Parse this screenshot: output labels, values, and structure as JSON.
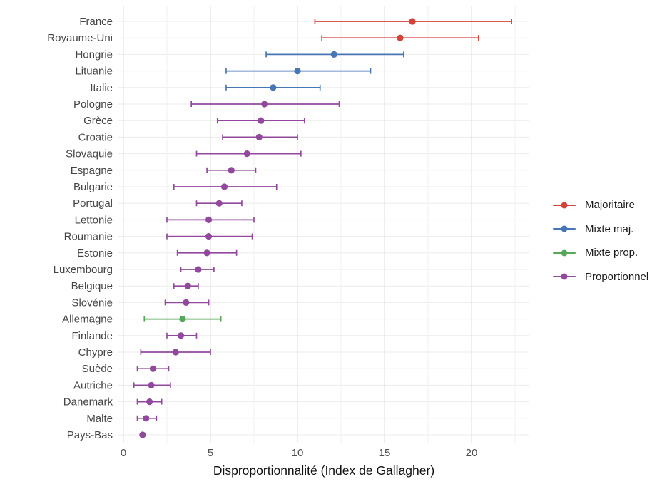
{
  "chart_data": {
    "type": "scatter",
    "subtype": "dot-with-horizontal-error-bars",
    "title": "",
    "xlabel": "Disproportionnalité (Index de Gallagher)",
    "ylabel": "",
    "xlim": [
      -0.3,
      23.3
    ],
    "x_ticks": [
      0,
      5,
      10,
      15,
      20
    ],
    "grid": {
      "vertical_interval": 2.5,
      "major_every": 5,
      "horizontal": "one line per country row"
    },
    "legend_position": "right-center",
    "groups": [
      {
        "name": "Majoritaire",
        "color": "#d6413a"
      },
      {
        "name": "Mixte maj.",
        "color": "#4776b4"
      },
      {
        "name": "Mixte prop.",
        "color": "#55a75a"
      },
      {
        "name": "Proportionnel",
        "color": "#92499d"
      }
    ],
    "points": [
      {
        "country": "France",
        "value": 16.6,
        "lo": 11.0,
        "hi": 22.3,
        "group": "Majoritaire"
      },
      {
        "country": "Royaume-Uni",
        "value": 15.9,
        "lo": 11.4,
        "hi": 20.4,
        "group": "Majoritaire"
      },
      {
        "country": "Hongrie",
        "value": 12.1,
        "lo": 8.2,
        "hi": 16.1,
        "group": "Mixte maj."
      },
      {
        "country": "Lituanie",
        "value": 10.0,
        "lo": 5.9,
        "hi": 14.2,
        "group": "Mixte maj."
      },
      {
        "country": "Italie",
        "value": 8.6,
        "lo": 5.9,
        "hi": 11.3,
        "group": "Mixte maj."
      },
      {
        "country": "Pologne",
        "value": 8.1,
        "lo": 3.9,
        "hi": 12.4,
        "group": "Proportionnel"
      },
      {
        "country": "Grèce",
        "value": 7.9,
        "lo": 5.4,
        "hi": 10.4,
        "group": "Proportionnel"
      },
      {
        "country": "Croatie",
        "value": 7.8,
        "lo": 5.7,
        "hi": 10.0,
        "group": "Proportionnel"
      },
      {
        "country": "Slovaquie",
        "value": 7.1,
        "lo": 4.2,
        "hi": 10.2,
        "group": "Proportionnel"
      },
      {
        "country": "Espagne",
        "value": 6.2,
        "lo": 4.8,
        "hi": 7.6,
        "group": "Proportionnel"
      },
      {
        "country": "Bulgarie",
        "value": 5.8,
        "lo": 2.9,
        "hi": 8.8,
        "group": "Proportionnel"
      },
      {
        "country": "Portugal",
        "value": 5.5,
        "lo": 4.2,
        "hi": 6.8,
        "group": "Proportionnel"
      },
      {
        "country": "Lettonie",
        "value": 4.9,
        "lo": 2.5,
        "hi": 7.5,
        "group": "Proportionnel"
      },
      {
        "country": "Roumanie",
        "value": 4.9,
        "lo": 2.5,
        "hi": 7.4,
        "group": "Proportionnel"
      },
      {
        "country": "Estonie",
        "value": 4.8,
        "lo": 3.1,
        "hi": 6.5,
        "group": "Proportionnel"
      },
      {
        "country": "Luxembourg",
        "value": 4.3,
        "lo": 3.3,
        "hi": 5.2,
        "group": "Proportionnel"
      },
      {
        "country": "Belgique",
        "value": 3.7,
        "lo": 2.9,
        "hi": 4.3,
        "group": "Proportionnel"
      },
      {
        "country": "Slovénie",
        "value": 3.6,
        "lo": 2.4,
        "hi": 4.9,
        "group": "Proportionnel"
      },
      {
        "country": "Allemagne",
        "value": 3.4,
        "lo": 1.2,
        "hi": 5.6,
        "group": "Mixte prop."
      },
      {
        "country": "Finlande",
        "value": 3.3,
        "lo": 2.5,
        "hi": 4.2,
        "group": "Proportionnel"
      },
      {
        "country": "Chypre",
        "value": 3.0,
        "lo": 1.0,
        "hi": 5.0,
        "group": "Proportionnel"
      },
      {
        "country": "Suède",
        "value": 1.7,
        "lo": 0.8,
        "hi": 2.6,
        "group": "Proportionnel"
      },
      {
        "country": "Autriche",
        "value": 1.6,
        "lo": 0.6,
        "hi": 2.7,
        "group": "Proportionnel"
      },
      {
        "country": "Danemark",
        "value": 1.5,
        "lo": 0.8,
        "hi": 2.2,
        "group": "Proportionnel"
      },
      {
        "country": "Malte",
        "value": 1.3,
        "lo": 0.8,
        "hi": 1.9,
        "group": "Proportionnel"
      },
      {
        "country": "Pays-Bas",
        "value": 1.1,
        "lo": 1.1,
        "hi": 1.1,
        "group": "Proportionnel"
      }
    ]
  }
}
